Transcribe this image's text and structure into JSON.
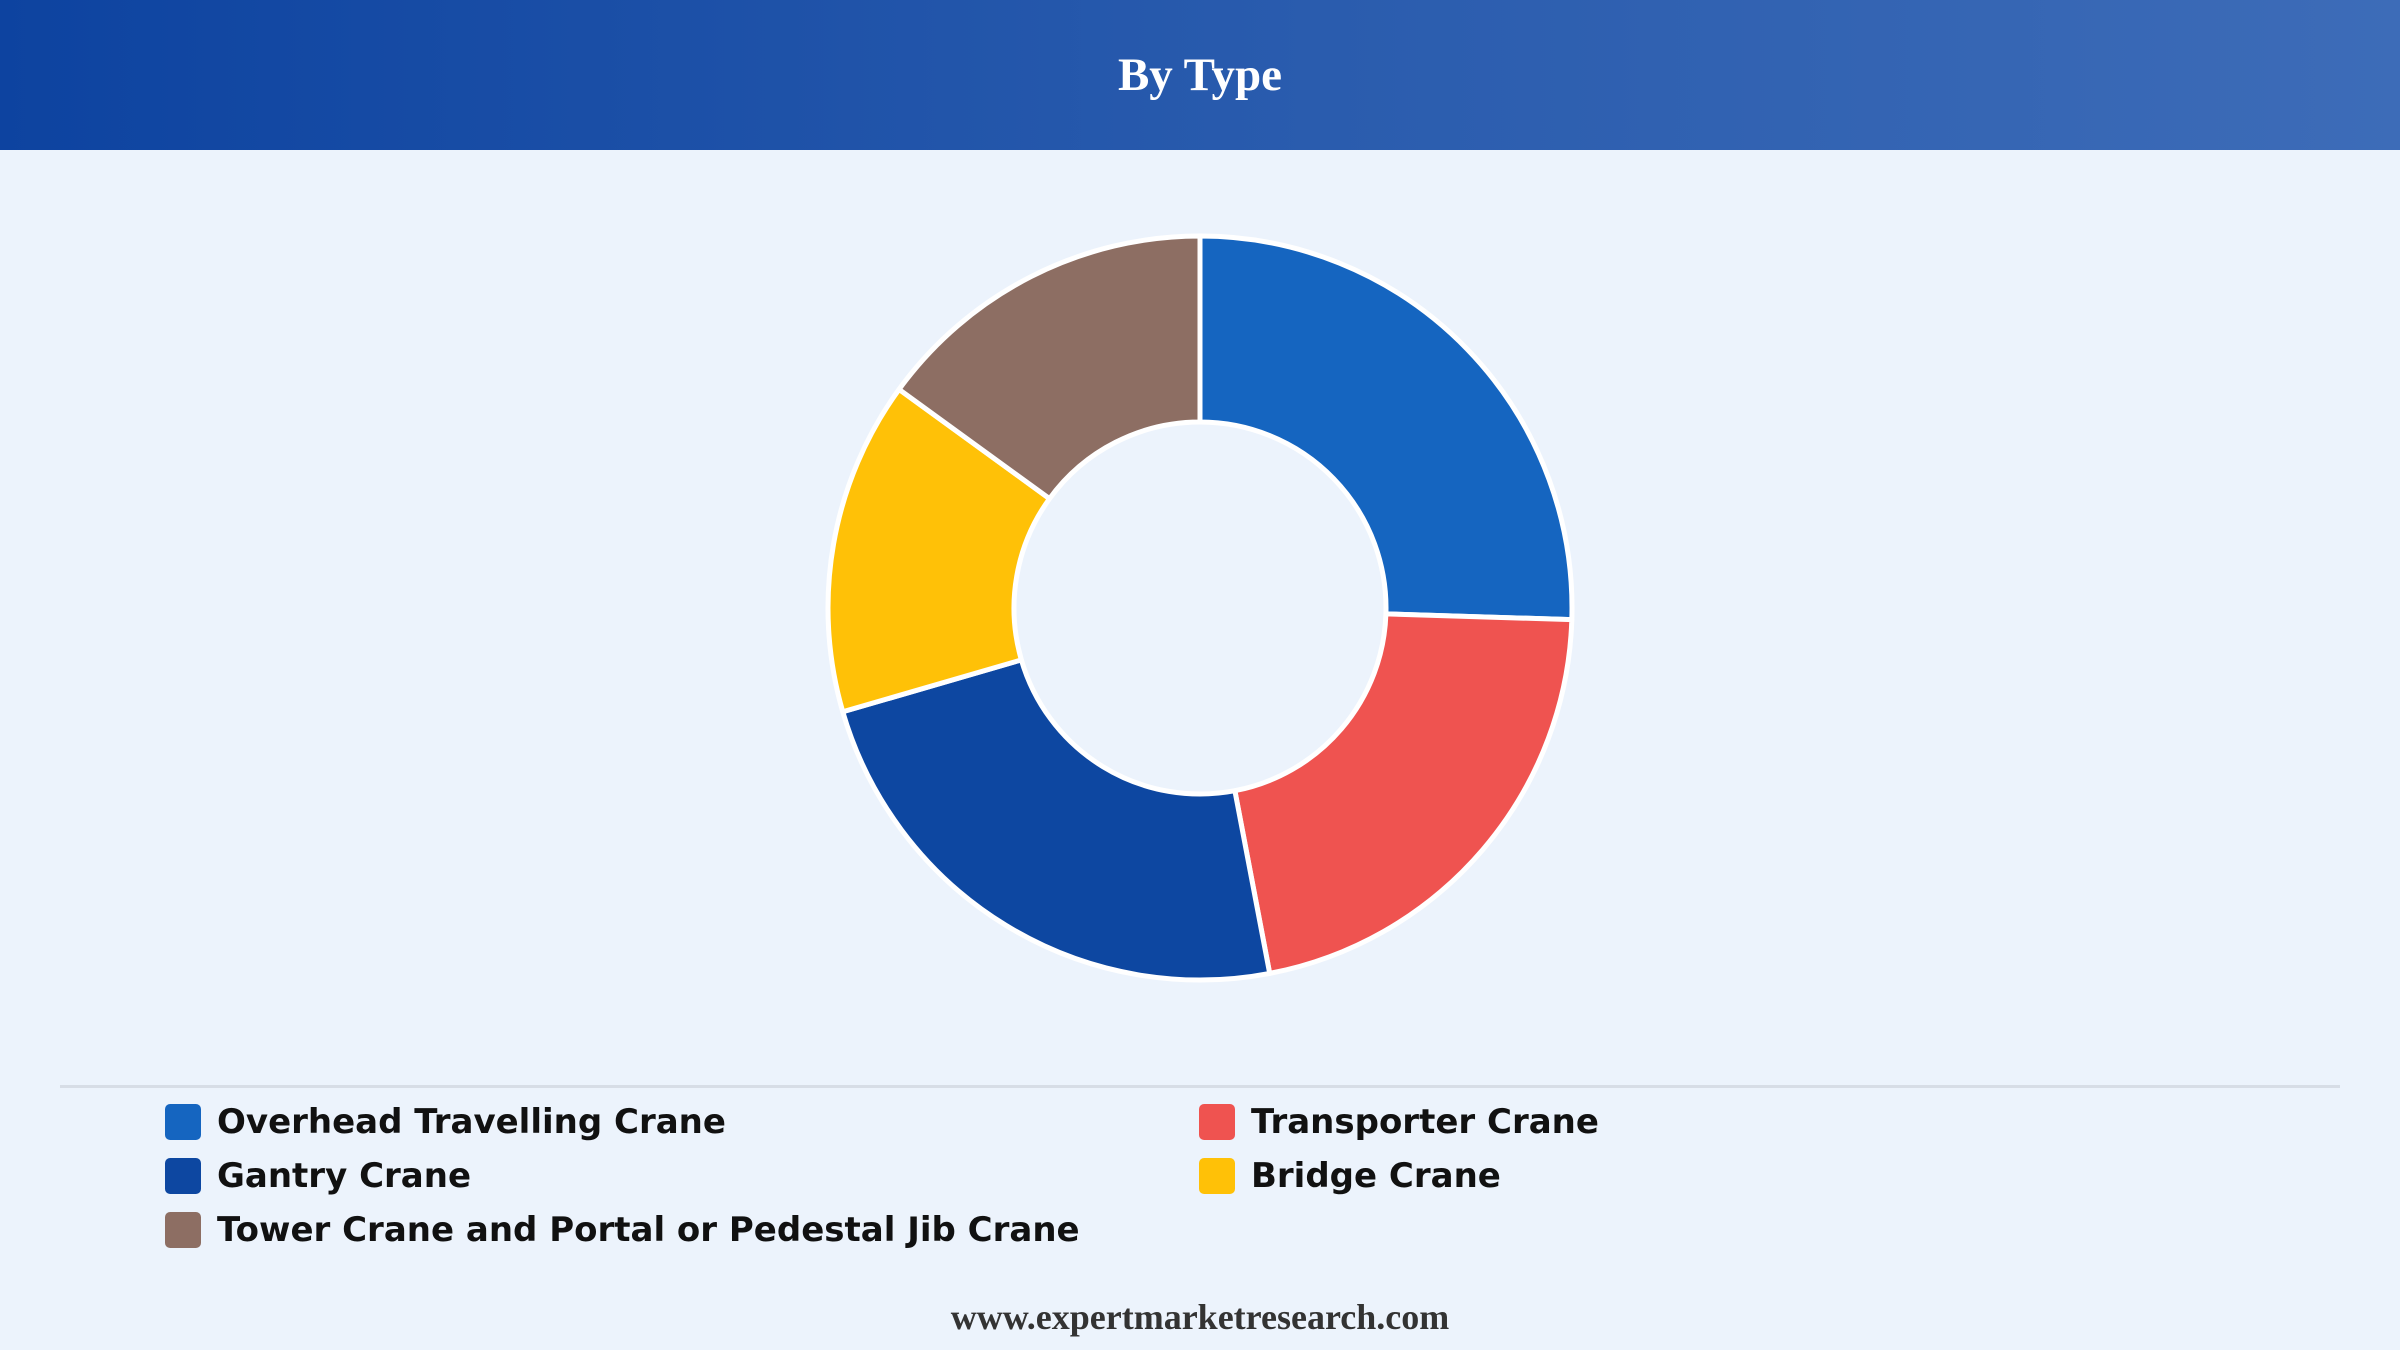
{
  "header": {
    "title": "By Type"
  },
  "chart_data": {
    "type": "pie",
    "variant": "donut",
    "title": "By Type",
    "categories": [
      "Overhead Travelling Crane",
      "Transporter Crane",
      "Gantry Crane",
      "Bridge Crane",
      "Tower Crane and Portal or Pedestal Jib Crane"
    ],
    "values": [
      25.5,
      21.5,
      23.5,
      14.5,
      15.0
    ],
    "colors": [
      "#1565c0",
      "#ef5350",
      "#0d47a1",
      "#ffc107",
      "#8d6e63"
    ],
    "slice_order": [
      "Overhead Travelling Crane",
      "Transporter Crane",
      "Gantry Crane",
      "Bridge Crane",
      "Tower Crane and Portal or Pedestal Jib Crane"
    ],
    "legend_position": "bottom",
    "unit": "%"
  },
  "legend": {
    "items": [
      {
        "label": "Overhead Travelling Crane",
        "color": "#1565c0"
      },
      {
        "label": "Transporter Crane",
        "color": "#ef5350"
      },
      {
        "label": "Gantry Crane",
        "color": "#0d47a1"
      },
      {
        "label": "Bridge Crane",
        "color": "#ffc107"
      },
      {
        "label": "Tower Crane and Portal or Pedestal Jib Crane",
        "color": "#8d6e63"
      }
    ]
  },
  "footer": {
    "source": "www.expertmarketresearch.com"
  }
}
